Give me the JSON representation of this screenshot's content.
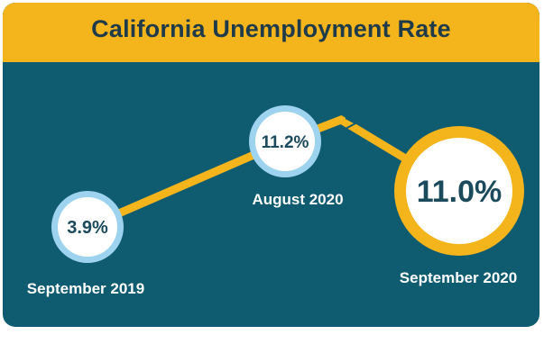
{
  "title": "California Unemployment Rate",
  "colors": {
    "background": "#0f5b70",
    "banner": "#f4b41c",
    "title_text": "#1f3b4a",
    "line": "#f4b41c",
    "ring_light": "#9ed3ef",
    "ring_gold": "#f4b41c",
    "value_text": "#1a4a5c",
    "label_text": "#ffffff"
  },
  "chart_data": {
    "type": "line",
    "title": "California Unemployment Rate",
    "x": [
      "September 2019",
      "August 2020",
      "September 2020"
    ],
    "series": [
      {
        "values": [
          3.9,
          11.2,
          11.0
        ],
        "value_labels": [
          "3.9%",
          "11.2%",
          "11.0%"
        ]
      }
    ],
    "highlight": "September 2020",
    "grid": false,
    "legend": "none"
  }
}
